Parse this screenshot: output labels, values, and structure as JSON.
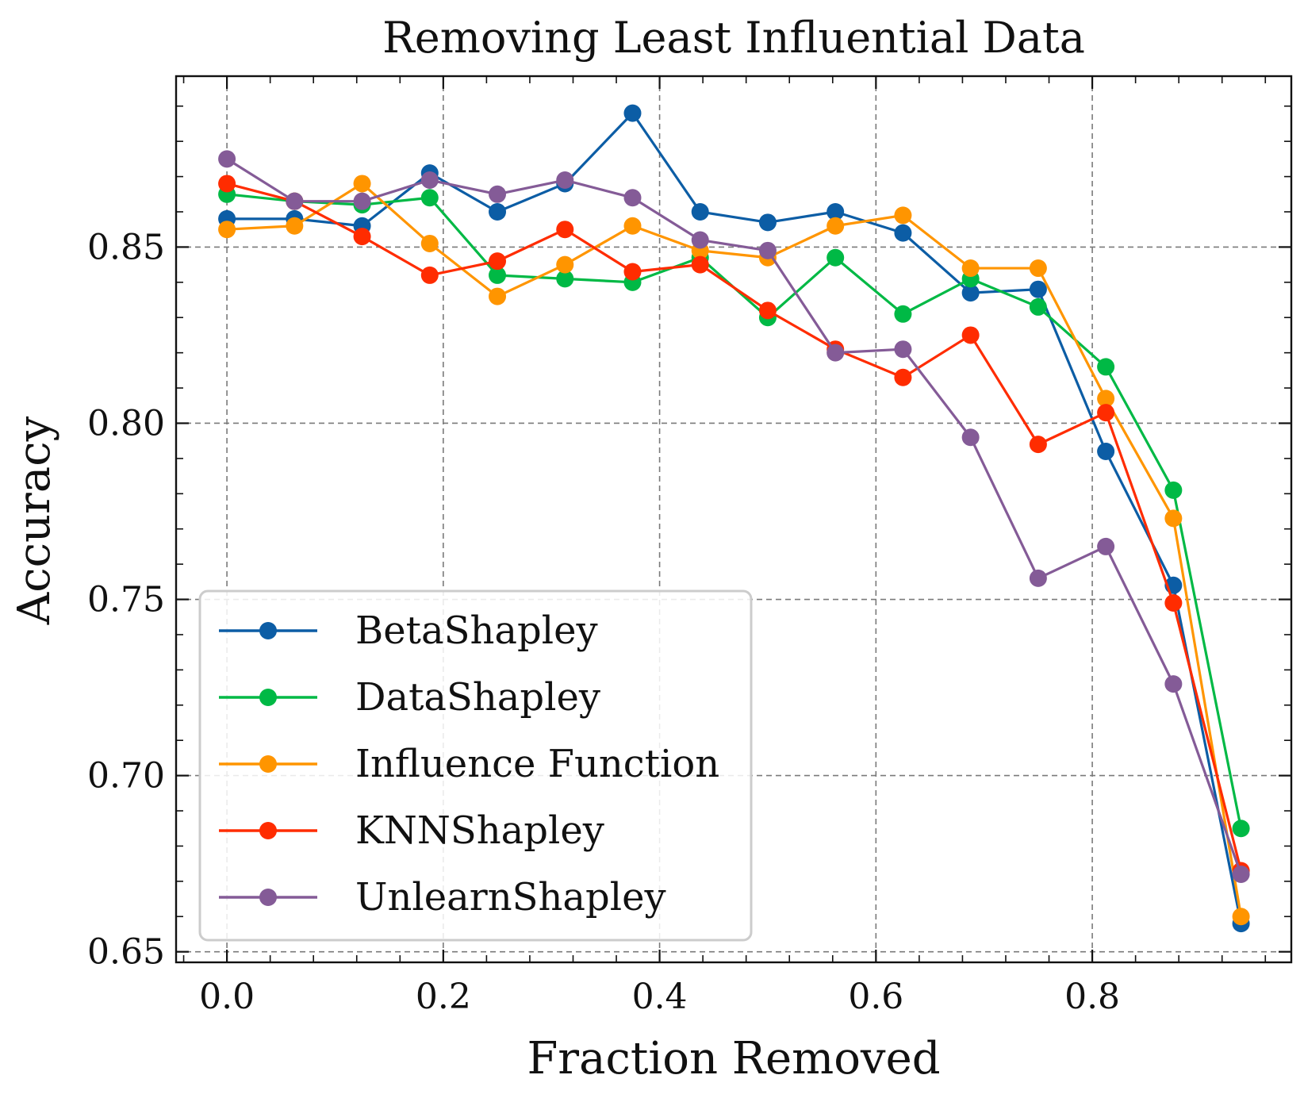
{
  "chart_data": {
    "type": "line",
    "title": "Removing Least Influential Data",
    "xlabel": "Fraction Removed",
    "ylabel": "Accuracy",
    "xlim": [
      -0.047,
      0.984
    ],
    "ylim": [
      0.647,
      0.8985
    ],
    "x_ticks": [
      0.0,
      0.2,
      0.4,
      0.6,
      0.8
    ],
    "x_tick_labels": [
      "0.0",
      "0.2",
      "0.4",
      "0.6",
      "0.8"
    ],
    "y_ticks": [
      0.65,
      0.7,
      0.75,
      0.8,
      0.85
    ],
    "y_tick_labels": [
      "0.65",
      "0.70",
      "0.75",
      "0.80",
      "0.85"
    ],
    "grid": true,
    "legend_position": "lower-left",
    "x": [
      0.0,
      0.0625,
      0.125,
      0.1875,
      0.25,
      0.3125,
      0.375,
      0.4375,
      0.5,
      0.5625,
      0.625,
      0.6875,
      0.75,
      0.8125,
      0.875,
      0.9375
    ],
    "series": [
      {
        "name": "BetaShapley",
        "color": "#0C5DA5",
        "values": [
          0.858,
          0.858,
          0.856,
          0.871,
          0.86,
          0.868,
          0.888,
          0.86,
          0.857,
          0.86,
          0.854,
          0.837,
          0.838,
          0.792,
          0.754,
          0.658
        ]
      },
      {
        "name": "DataShapley",
        "color": "#00B945",
        "values": [
          0.865,
          0.863,
          0.862,
          0.864,
          0.842,
          0.841,
          0.84,
          0.847,
          0.83,
          0.847,
          0.831,
          0.841,
          0.833,
          0.816,
          0.781,
          0.685
        ]
      },
      {
        "name": "Influence Function",
        "color": "#FF9500",
        "values": [
          0.855,
          0.856,
          0.868,
          0.851,
          0.836,
          0.845,
          0.856,
          0.849,
          0.847,
          0.856,
          0.859,
          0.844,
          0.844,
          0.807,
          0.773,
          0.66
        ]
      },
      {
        "name": "KNNShapley",
        "color": "#FF2C00",
        "values": [
          0.868,
          0.863,
          0.853,
          0.842,
          0.846,
          0.855,
          0.843,
          0.845,
          0.832,
          0.821,
          0.813,
          0.825,
          0.794,
          0.803,
          0.749,
          0.673
        ]
      },
      {
        "name": "UnlearnShapley",
        "color": "#845B97",
        "values": [
          0.875,
          0.863,
          0.863,
          0.869,
          0.865,
          0.869,
          0.864,
          0.852,
          0.849,
          0.82,
          0.821,
          0.796,
          0.756,
          0.765,
          0.726,
          0.672
        ]
      }
    ]
  }
}
